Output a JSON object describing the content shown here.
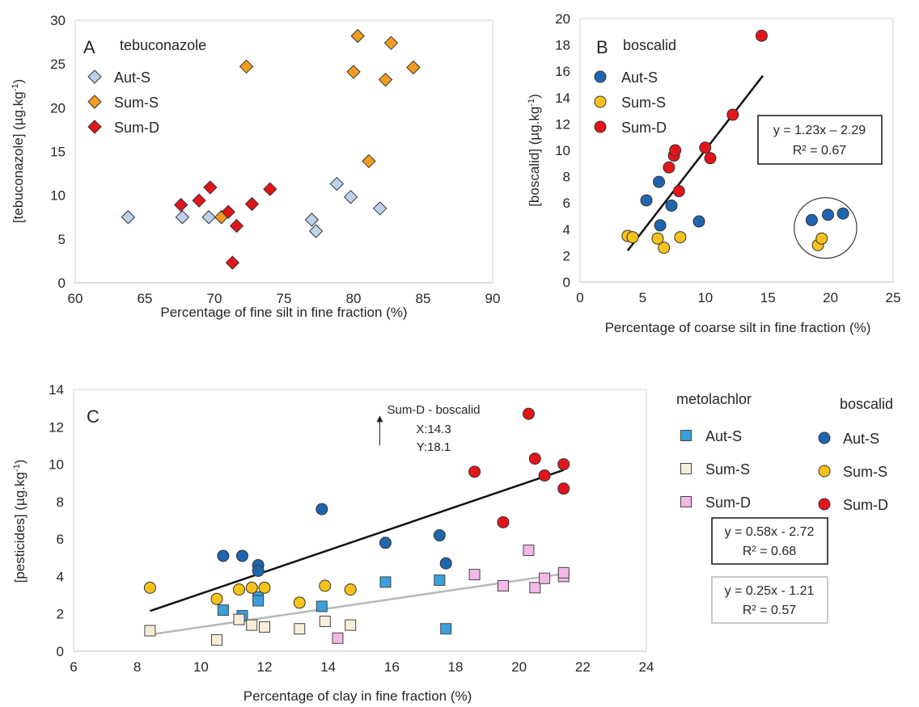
{
  "colors": {
    "aut_s_light": "#bcd3ee",
    "sum_s_orange": "#f39c1f",
    "sum_d_red": "#e3151a",
    "aut_s_blue": "#1f66b0",
    "sum_s_yellow": "#f7c21a",
    "met_aut_s": "#3aa0dc",
    "met_sum_s": "#f6eed8",
    "met_sum_d": "#f3b8e8",
    "regression_black": "#111111",
    "regression_gray": "#b8b8b8"
  },
  "chart_data": [
    {
      "panel": "A",
      "type": "scatter",
      "title": "tebuconazole",
      "xlabel": "Percentage of fine silt in fine fraction (%)",
      "ylabel": "[tebuconazole] (µg.kg-1)",
      "xlim": [
        60,
        90
      ],
      "ylim": [
        0,
        30
      ],
      "xticks": [
        "60",
        "65",
        "70",
        "75",
        "80",
        "85",
        "90"
      ],
      "yticks": [
        "0",
        "5",
        "10",
        "15",
        "20",
        "25",
        "30"
      ],
      "grid": false,
      "legend_position": "top-left",
      "series": [
        {
          "name": "Aut-S",
          "marker": "diamond",
          "color": "#bcd3ee",
          "x": [
            63.8,
            67.7,
            69.6,
            77.0,
            77.3,
            78.8,
            79.8,
            81.9
          ],
          "y": [
            7.5,
            7.5,
            7.5,
            7.2,
            5.9,
            11.3,
            9.8,
            8.5
          ]
        },
        {
          "name": "Sum-S",
          "marker": "diamond",
          "color": "#f39c1f",
          "x": [
            70.5,
            72.3,
            80.0,
            80.3,
            81.1,
            82.3,
            82.7,
            84.3
          ],
          "y": [
            7.5,
            24.7,
            24.1,
            28.2,
            13.9,
            23.2,
            27.4,
            24.6
          ]
        },
        {
          "name": "Sum-D",
          "marker": "diamond",
          "color": "#e3151a",
          "x": [
            67.6,
            68.9,
            69.7,
            71.0,
            71.3,
            71.6,
            72.7,
            74.0
          ],
          "y": [
            8.9,
            9.4,
            10.9,
            8.1,
            2.3,
            6.5,
            9.0,
            10.7
          ]
        }
      ]
    },
    {
      "panel": "B",
      "type": "scatter",
      "title": "boscalid",
      "xlabel": "Percentage of coarse silt in fine fraction (%)",
      "ylabel": "[boscalid] (µg.kg-1)",
      "xlim": [
        0,
        25
      ],
      "ylim": [
        0,
        20
      ],
      "xticks": [
        "0",
        "5",
        "10",
        "15",
        "20",
        "25"
      ],
      "yticks": [
        "0",
        "2",
        "4",
        "6",
        "8",
        "10",
        "12",
        "14",
        "16",
        "18",
        "20"
      ],
      "grid": false,
      "legend_position": "top-left",
      "series": [
        {
          "name": "Aut-S",
          "marker": "circle",
          "color": "#1f66b0",
          "x": [
            5.3,
            6.3,
            6.4,
            7.3,
            9.5,
            18.5,
            19.8,
            21.0
          ],
          "y": [
            6.2,
            7.6,
            4.3,
            5.8,
            4.6,
            4.7,
            5.1,
            5.2
          ]
        },
        {
          "name": "Sum-S",
          "marker": "circle",
          "color": "#f7c21a",
          "x": [
            3.8,
            4.2,
            6.2,
            6.7,
            8.0,
            19.0,
            19.3
          ],
          "y": [
            3.5,
            3.4,
            3.3,
            2.6,
            3.4,
            2.8,
            3.3
          ]
        },
        {
          "name": "Sum-D",
          "marker": "circle",
          "color": "#e3151a",
          "x": [
            7.1,
            7.5,
            7.6,
            7.9,
            10.0,
            10.4,
            12.2,
            14.5
          ],
          "y": [
            8.7,
            9.6,
            10.0,
            6.9,
            10.2,
            9.4,
            12.7,
            18.7
          ]
        }
      ],
      "regression": {
        "slope": 1.23,
        "intercept": -2.29,
        "x_range": [
          3.8,
          14.6
        ],
        "equation": "y = 1.23x – 2.29",
        "r2": "R² = 0.67"
      },
      "outlier_group": {
        "center": [
          19.6,
          4.1
        ],
        "radius_x": 2.5,
        "radius_y": 2.3
      }
    },
    {
      "panel": "C",
      "type": "scatter",
      "xlabel": "Percentage of clay in fine fraction (%)",
      "ylabel": "[pesticides] (µg.kg-1)",
      "xlim": [
        6,
        24
      ],
      "ylim": [
        0,
        14
      ],
      "xticks": [
        "6",
        "8",
        "10",
        "12",
        "14",
        "16",
        "18",
        "20",
        "22",
        "24"
      ],
      "yticks": [
        "0",
        "2",
        "4",
        "6",
        "8",
        "10",
        "12",
        "14"
      ],
      "grid": false,
      "legend_position": "right",
      "legend_groups": [
        "metolachlor",
        "boscalid"
      ],
      "series": [
        {
          "name": "Aut-S",
          "group": "metolachlor",
          "marker": "square",
          "color": "#3aa0dc",
          "x": [
            10.7,
            11.3,
            11.8,
            11.8,
            13.8,
            15.8,
            17.5,
            17.7
          ],
          "y": [
            2.2,
            1.9,
            2.9,
            2.7,
            2.4,
            3.7,
            3.8,
            1.2
          ]
        },
        {
          "name": "Sum-S",
          "group": "metolachlor",
          "marker": "square",
          "color": "#f6eed8",
          "x": [
            8.4,
            10.5,
            11.2,
            11.6,
            12.0,
            13.1,
            13.9,
            14.7
          ],
          "y": [
            1.1,
            0.6,
            1.7,
            1.4,
            1.3,
            1.2,
            1.6,
            1.4
          ]
        },
        {
          "name": "Sum-D",
          "group": "metolachlor",
          "marker": "square",
          "color": "#f3b8e8",
          "x": [
            14.3,
            18.6,
            19.5,
            20.3,
            20.5,
            20.8,
            21.4,
            21.4
          ],
          "y": [
            0.7,
            4.1,
            3.5,
            5.4,
            3.4,
            3.9,
            4.0,
            4.2
          ]
        },
        {
          "name": "Aut-S",
          "group": "boscalid",
          "marker": "circle",
          "color": "#1f66b0",
          "x": [
            10.7,
            11.3,
            11.8,
            11.8,
            13.8,
            15.8,
            17.5,
            17.7
          ],
          "y": [
            5.1,
            5.1,
            4.6,
            4.3,
            7.6,
            5.8,
            6.2,
            4.7
          ]
        },
        {
          "name": "Sum-S",
          "group": "boscalid",
          "marker": "circle",
          "color": "#f7c21a",
          "x": [
            8.4,
            10.5,
            11.2,
            11.6,
            12.0,
            13.1,
            13.9,
            14.7
          ],
          "y": [
            3.4,
            2.8,
            3.3,
            3.4,
            3.4,
            2.6,
            3.5,
            3.3
          ]
        },
        {
          "name": "Sum-D",
          "group": "boscalid",
          "marker": "circle",
          "color": "#e3151a",
          "x": [
            18.6,
            19.5,
            20.3,
            20.5,
            20.8,
            21.4,
            21.4
          ],
          "y": [
            9.6,
            6.9,
            12.7,
            10.3,
            9.4,
            10.0,
            8.7
          ]
        }
      ],
      "regressions": [
        {
          "slope": 0.58,
          "intercept": -2.72,
          "x_range": [
            8.4,
            21.4
          ],
          "color": "#111111",
          "equation": "y = 0.58x - 2.72",
          "r2": "R² = 0.68"
        },
        {
          "slope": 0.25,
          "intercept": -1.21,
          "x_range": [
            8.4,
            21.4
          ],
          "color": "#b8b8b8",
          "equation": "y = 0.25x - 1.21",
          "r2": "R² = 0.57"
        }
      ],
      "annotation": {
        "lines": [
          "Sum-D - boscalid",
          "X:14.3",
          "Y:18.1"
        ],
        "arrow_x": 14.3,
        "arrow_y_from": 11.0,
        "arrow_y_to": 12.6
      }
    }
  ]
}
